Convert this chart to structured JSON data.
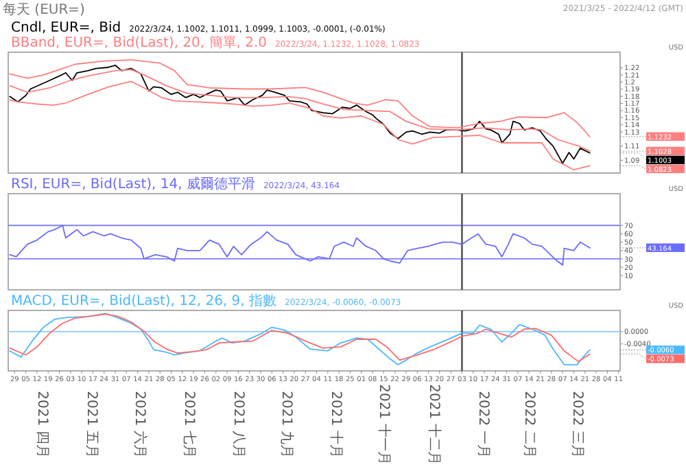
{
  "chart_data": [
    {
      "type": "line",
      "title": "Cndl, EUR=, Bid",
      "subtitle": "2022/3/24, 1.1002, 1.1011, 1.0999, 1.1003, -0.0001, (-0.01%)",
      "ylabel": "USD",
      "xlim": [
        "2021-03-25",
        "2022-04-12"
      ],
      "ylim": [
        1.072,
        1.242
      ],
      "yticks": [
        1.09,
        1.11,
        1.13,
        1.14,
        1.15,
        1.16,
        1.17,
        1.18,
        1.19,
        1.2,
        1.21,
        1.22
      ],
      "tick_labels": "y",
      "ref_lines": [
        {
          "axis": "x",
          "value": "2022-01-03",
          "color": "#555555"
        }
      ],
      "annotations": [
        "BBand, EUR=, Bid(Last), 20, 簡單, 2.0",
        "2022/3/24, 1.1232, 1.1028, 1.0823",
        "每天 (EUR=)",
        "2021/3/25 - 2022/4/12 (GMT)",
        "1.1003",
        "1.1232",
        "1.1028",
        "1.0823"
      ],
      "series": [
        {
          "color": "#000000",
          "x": [
            "2021-03-26",
            "2021-03-31",
            "2021-04-05",
            "2021-04-08",
            "2021-04-14",
            "2021-04-20",
            "2021-04-26",
            "2021-04-30",
            "2021-05-04",
            "2021-05-07",
            "2021-05-14",
            "2021-05-19",
            "2021-05-26",
            "2021-05-31",
            "2021-06-04",
            "2021-06-10",
            "2021-06-16",
            "2021-06-21",
            "2021-06-24",
            "2021-06-29",
            "2021-07-05",
            "2021-07-09",
            "2021-07-14",
            "2021-07-19",
            "2021-07-23",
            "2021-07-27",
            "2021-08-02",
            "2021-08-05",
            "2021-08-09",
            "2021-08-16",
            "2021-08-20",
            "2021-08-25",
            "2021-08-31",
            "2021-09-03",
            "2021-09-08",
            "2021-09-14",
            "2021-09-17",
            "2021-09-24",
            "2021-09-28",
            "2021-10-01",
            "2021-10-08",
            "2021-10-14",
            "2021-10-20",
            "2021-10-25",
            "2021-10-29",
            "2021-11-04",
            "2021-11-08",
            "2021-11-10",
            "2021-11-15",
            "2021-11-19",
            "2021-11-24",
            "2021-11-29",
            "2021-12-03",
            "2021-12-09",
            "2021-12-14",
            "2021-12-20",
            "2021-12-24",
            "2021-12-31",
            "2022-01-05",
            "2022-01-10",
            "2022-01-14",
            "2022-01-18",
            "2022-01-21",
            "2022-01-26",
            "2022-01-28",
            "2022-02-02",
            "2022-02-04",
            "2022-02-08",
            "2022-02-11",
            "2022-02-16",
            "2022-02-21",
            "2022-02-25",
            "2022-03-01",
            "2022-03-07",
            "2022-03-11",
            "2022-03-14",
            "2022-03-18",
            "2022-03-22",
            "2022-03-24"
          ],
          "values": [
            1.1796,
            1.1721,
            1.1812,
            1.1903,
            1.1964,
            1.2024,
            1.2085,
            1.213,
            1.2024,
            1.213,
            1.216,
            1.2191,
            1.2205,
            1.2236,
            1.216,
            1.2191,
            1.2115,
            1.1873,
            1.1933,
            1.1918,
            1.1827,
            1.1857,
            1.1782,
            1.1827,
            1.1782,
            1.1827,
            1.1887,
            1.1873,
            1.1736,
            1.1782,
            1.1675,
            1.1751,
            1.1812,
            1.1887,
            1.1857,
            1.1812,
            1.1736,
            1.1721,
            1.1691,
            1.16,
            1.1569,
            1.1555,
            1.1645,
            1.163,
            1.1675,
            1.1585,
            1.1539,
            1.1494,
            1.1403,
            1.1282,
            1.1205,
            1.1296,
            1.1312,
            1.1266,
            1.1296,
            1.1282,
            1.1327,
            1.1327,
            1.1312,
            1.1342,
            1.1448,
            1.1342,
            1.1327,
            1.1266,
            1.1145,
            1.1266,
            1.1448,
            1.1418,
            1.1327,
            1.1357,
            1.1312,
            1.1191,
            1.11,
            1.0857,
            1.1009,
            1.0918,
            1.1069,
            1.1024,
            1.1003
          ]
        },
        {
          "color": "#ff7f7f",
          "x": [
            "2021-03-26",
            "2021-04-06",
            "2021-04-16",
            "2021-04-26",
            "2021-05-06",
            "2021-05-24",
            "2021-06-10",
            "2021-06-28",
            "2021-07-07",
            "2021-07-15",
            "2021-07-29",
            "2021-08-20",
            "2021-09-06",
            "2021-09-27",
            "2021-10-08",
            "2021-10-27",
            "2021-11-05",
            "2021-11-16",
            "2021-11-24",
            "2021-12-03",
            "2021-12-14",
            "2021-12-31",
            "2022-01-14",
            "2022-01-27",
            "2022-02-07",
            "2022-02-25",
            "2022-03-08",
            "2022-03-16",
            "2022-03-24"
          ],
          "values": [
            1.2115,
            1.2055,
            1.21,
            1.2175,
            1.2251,
            1.2296,
            1.2312,
            1.2266,
            1.216,
            1.1964,
            1.1918,
            1.1903,
            1.1903,
            1.1924,
            1.1857,
            1.1705,
            1.1675,
            1.1751,
            1.1736,
            1.1524,
            1.1373,
            1.1357,
            1.1418,
            1.1448,
            1.1509,
            1.15,
            1.1569,
            1.1433,
            1.1232
          ]
        },
        {
          "color": "#ff7f7f",
          "x": [
            "2021-03-26",
            "2021-04-06",
            "2021-04-20",
            "2021-05-03",
            "2021-05-14",
            "2021-05-31",
            "2021-06-10",
            "2021-06-18",
            "2021-07-02",
            "2021-07-15",
            "2021-07-29",
            "2021-08-13",
            "2021-08-31",
            "2021-09-16",
            "2021-09-27",
            "2021-10-08",
            "2021-10-21",
            "2021-11-05",
            "2021-11-19",
            "2021-11-29",
            "2021-12-13",
            "2021-12-31",
            "2022-01-17",
            "2022-02-02",
            "2022-02-15",
            "2022-02-22",
            "2022-03-04",
            "2022-03-17",
            "2022-03-24"
          ],
          "values": [
            1.1948,
            1.1857,
            1.1918,
            1.2024,
            1.2085,
            1.216,
            1.2175,
            1.21,
            1.1948,
            1.1842,
            1.1812,
            1.1782,
            1.1782,
            1.1796,
            1.1766,
            1.1691,
            1.1615,
            1.16,
            1.1585,
            1.1448,
            1.1342,
            1.1327,
            1.1357,
            1.1327,
            1.1342,
            1.1327,
            1.1191,
            1.11,
            1.1028
          ]
        },
        {
          "color": "#ff7f7f",
          "x": [
            "2021-03-26",
            "2021-03-31",
            "2021-04-12",
            "2021-04-22",
            "2021-04-30",
            "2021-05-14",
            "2021-05-27",
            "2021-06-10",
            "2021-06-18",
            "2021-06-29",
            "2021-07-07",
            "2021-07-21",
            "2021-08-04",
            "2021-08-13",
            "2021-08-25",
            "2021-09-06",
            "2021-09-17",
            "2021-09-30",
            "2021-10-08",
            "2021-10-19",
            "2021-11-01",
            "2021-11-15",
            "2021-11-24",
            "2021-12-03",
            "2021-12-16",
            "2021-12-31",
            "2022-01-14",
            "2022-01-28",
            "2022-02-15",
            "2022-02-22",
            "2022-03-01",
            "2022-03-14",
            "2022-03-24"
          ],
          "values": [
            1.1751,
            1.1721,
            1.1691,
            1.1675,
            1.1705,
            1.1827,
            1.1933,
            1.2009,
            1.1918,
            1.1782,
            1.1736,
            1.1721,
            1.1705,
            1.1691,
            1.166,
            1.1675,
            1.1705,
            1.163,
            1.1524,
            1.1494,
            1.1524,
            1.1403,
            1.1191,
            1.113,
            1.1221,
            1.1236,
            1.1251,
            1.1145,
            1.1145,
            1.1145,
            1.0918,
            1.0766,
            1.0823
          ]
        }
      ]
    },
    {
      "type": "line",
      "title": "RSI, EUR=, Bid(Last), 14, 威爾德平滑",
      "subtitle": "2022/3/24, 43.164",
      "ylabel": "USD",
      "xlim": [
        "2021-03-25",
        "2022-04-12"
      ],
      "ylim": [
        -7,
        108
      ],
      "yticks": [
        10,
        20,
        30,
        40,
        50,
        60,
        70
      ],
      "tick_labels": "y",
      "ref_lines": [
        {
          "axis": "y",
          "value": 70,
          "color": "#7f7fff"
        },
        {
          "axis": "y",
          "value": 30,
          "color": "#7f7fff"
        },
        {
          "axis": "x",
          "value": "2022-01-03",
          "color": "#555555"
        }
      ],
      "annotations": [
        "43.164"
      ],
      "series": [
        {
          "color": "#6b6bff",
          "x": [
            "2021-03-26",
            "2021-03-30",
            "2021-04-06",
            "2021-04-12",
            "2021-04-19",
            "2021-04-23",
            "2021-04-28",
            "2021-04-30",
            "2021-05-07",
            "2021-05-11",
            "2021-05-17",
            "2021-05-24",
            "2021-05-28",
            "2021-06-04",
            "2021-06-10",
            "2021-06-16",
            "2021-06-18",
            "2021-06-25",
            "2021-07-02",
            "2021-07-07",
            "2021-07-09",
            "2021-07-15",
            "2021-07-23",
            "2021-07-29",
            "2021-08-04",
            "2021-08-09",
            "2021-08-13",
            "2021-08-18",
            "2021-08-24",
            "2021-08-30",
            "2021-09-03",
            "2021-09-09",
            "2021-09-16",
            "2021-09-21",
            "2021-09-30",
            "2021-10-05",
            "2021-10-12",
            "2021-10-15",
            "2021-10-21",
            "2021-10-27",
            "2021-10-29",
            "2021-11-04",
            "2021-11-10",
            "2021-11-15",
            "2021-11-19",
            "2021-11-25",
            "2021-11-30",
            "2021-12-06",
            "2021-12-13",
            "2021-12-17",
            "2021-12-22",
            "2021-12-28",
            "2022-01-03",
            "2022-01-07",
            "2022-01-13",
            "2022-01-18",
            "2022-01-24",
            "2022-01-28",
            "2022-02-01",
            "2022-02-04",
            "2022-02-11",
            "2022-02-16",
            "2022-02-22",
            "2022-03-02",
            "2022-03-07",
            "2022-03-08",
            "2022-03-14",
            "2022-03-18",
            "2022-03-24"
          ],
          "values": [
            35,
            32.5,
            47.5,
            52.5,
            62.5,
            65,
            70,
            55,
            65,
            57.5,
            62.5,
            57.5,
            60,
            55,
            52.5,
            42.5,
            30,
            35,
            32.5,
            27.5,
            42.5,
            40,
            40,
            52.5,
            47.5,
            32.5,
            45,
            35,
            47.5,
            55,
            62.5,
            52.5,
            47.5,
            35,
            27.5,
            32.5,
            30,
            45,
            50,
            45,
            55,
            45,
            40,
            30,
            27.5,
            25,
            40,
            42.5,
            45,
            47.5,
            50,
            50,
            47.5,
            52.5,
            60,
            47.5,
            45,
            32.5,
            47.5,
            60,
            55,
            47.5,
            45,
            30,
            22.5,
            42.5,
            40,
            50,
            43.164
          ]
        }
      ]
    },
    {
      "type": "line",
      "title": "MACD, EUR=, Bid(Last), 12, 26, 9, 指數",
      "subtitle": "2022/3/24, -0.0060, -0.0073",
      "ylabel": "USD",
      "xlim": [
        "2021-03-25",
        "2022-04-12"
      ],
      "ylim": [
        -0.0128,
        0.0069
      ],
      "yticks": [
        {
          "value": 0,
          "label": "0.0000"
        },
        {
          "value": -0.004,
          "label": "-0.0040"
        }
      ],
      "xticks": [
        {
          "value": "2021-03-29",
          "label": "29"
        },
        {
          "value": "2021-04-05",
          "label": "05"
        },
        {
          "value": "2021-04-12",
          "label": "12"
        },
        {
          "value": "2021-04-19",
          "label": "19"
        },
        {
          "value": "2021-04-26",
          "label": "26"
        },
        {
          "value": "2021-05-03",
          "label": "03"
        },
        {
          "value": "2021-05-10",
          "label": "10"
        },
        {
          "value": "2021-05-17",
          "label": "17"
        },
        {
          "value": "2021-05-24",
          "label": "24"
        },
        {
          "value": "2021-05-31",
          "label": "31"
        },
        {
          "value": "2021-06-07",
          "label": "07"
        },
        {
          "value": "2021-06-14",
          "label": "14"
        },
        {
          "value": "2021-06-21",
          "label": "21"
        },
        {
          "value": "2021-06-28",
          "label": "28"
        },
        {
          "value": "2021-07-05",
          "label": "05"
        },
        {
          "value": "2021-07-12",
          "label": "12"
        },
        {
          "value": "2021-07-19",
          "label": "19"
        },
        {
          "value": "2021-07-26",
          "label": "26"
        },
        {
          "value": "2021-08-02",
          "label": "02"
        },
        {
          "value": "2021-08-09",
          "label": "09"
        },
        {
          "value": "2021-08-16",
          "label": "16"
        },
        {
          "value": "2021-08-23",
          "label": "23"
        },
        {
          "value": "2021-08-30",
          "label": "30"
        },
        {
          "value": "2021-09-06",
          "label": "06"
        },
        {
          "value": "2021-09-13",
          "label": "13"
        },
        {
          "value": "2021-09-20",
          "label": "20"
        },
        {
          "value": "2021-09-27",
          "label": "27"
        },
        {
          "value": "2021-10-04",
          "label": "04"
        },
        {
          "value": "2021-10-11",
          "label": "11"
        },
        {
          "value": "2021-10-18",
          "label": "18"
        },
        {
          "value": "2021-10-25",
          "label": "25"
        },
        {
          "value": "2021-11-01",
          "label": "01"
        },
        {
          "value": "2021-11-08",
          "label": "08"
        },
        {
          "value": "2021-11-15",
          "label": "15"
        },
        {
          "value": "2021-11-22",
          "label": "22"
        },
        {
          "value": "2021-11-29",
          "label": "29"
        },
        {
          "value": "2021-12-06",
          "label": "06"
        },
        {
          "value": "2021-12-13",
          "label": "13"
        },
        {
          "value": "2021-12-20",
          "label": "20"
        },
        {
          "value": "2021-12-27",
          "label": "27"
        },
        {
          "value": "2022-01-03",
          "label": "03"
        },
        {
          "value": "2022-01-10",
          "label": "10"
        },
        {
          "value": "2022-01-17",
          "label": "17"
        },
        {
          "value": "2022-01-24",
          "label": "24"
        },
        {
          "value": "2022-01-31",
          "label": "31"
        },
        {
          "value": "2022-02-07",
          "label": "07"
        },
        {
          "value": "2022-02-14",
          "label": "14"
        },
        {
          "value": "2022-02-21",
          "label": "21"
        },
        {
          "value": "2022-02-28",
          "label": "28"
        },
        {
          "value": "2022-03-07",
          "label": "07"
        },
        {
          "value": "2022-03-14",
          "label": "14"
        },
        {
          "value": "2022-03-21",
          "label": "21"
        },
        {
          "value": "2022-03-28",
          "label": "28"
        },
        {
          "value": "2022-04-04",
          "label": "04"
        },
        {
          "value": "2022-04-11",
          "label": "11"
        }
      ],
      "x2lim": [
        "2021-03-25",
        "2022-04-12"
      ],
      "x2ticks": [
        {
          "value": "2021-04-15",
          "label": "2021 四月"
        },
        {
          "value": "2021-05-16",
          "label": "2021 五月"
        },
        {
          "value": "2021-06-15",
          "label": "2021 六月"
        },
        {
          "value": "2021-07-16",
          "label": "2021 七月"
        },
        {
          "value": "2021-08-16",
          "label": "2021 八月"
        },
        {
          "value": "2021-09-15",
          "label": "2021 九月"
        },
        {
          "value": "2021-10-16",
          "label": "2021 十月"
        },
        {
          "value": "2021-11-15",
          "label": "2021 十一月"
        },
        {
          "value": "2021-12-16",
          "label": "2021 十二月"
        },
        {
          "value": "2022-01-16",
          "label": "2022 一月"
        },
        {
          "value": "2022-02-14",
          "label": "2022 二月"
        },
        {
          "value": "2022-03-16",
          "label": "2022 三月"
        }
      ],
      "ref_lines": [
        {
          "axis": "y",
          "value": 0,
          "color": "#8cc8ff"
        },
        {
          "axis": "x",
          "value": "2022-01-03",
          "color": "#555555"
        }
      ],
      "annotations": [
        "-0.0060",
        "-0.0073"
      ],
      "series": [
        {
          "color": "#4db8ff",
          "x": [
            "2021-03-26",
            "2021-04-02",
            "2021-04-09",
            "2021-04-16",
            "2021-04-23",
            "2021-04-30",
            "2021-05-14",
            "2021-05-25",
            "2021-06-02",
            "2021-06-10",
            "2021-06-16",
            "2021-06-21",
            "2021-06-24",
            "2021-07-02",
            "2021-07-07",
            "2021-07-13",
            "2021-07-23",
            "2021-08-02",
            "2021-08-06",
            "2021-08-12",
            "2021-08-20",
            "2021-08-31",
            "2021-09-06",
            "2021-09-14",
            "2021-09-21",
            "2021-09-30",
            "2021-10-11",
            "2021-10-19",
            "2021-10-29",
            "2021-11-05",
            "2021-11-12",
            "2021-11-19",
            "2021-11-24",
            "2021-11-29",
            "2021-12-06",
            "2021-12-14",
            "2021-12-24",
            "2022-01-03",
            "2022-01-10",
            "2022-01-14",
            "2022-01-21",
            "2022-01-28",
            "2022-02-03",
            "2022-02-08",
            "2022-02-16",
            "2022-02-24",
            "2022-03-01",
            "2022-03-08",
            "2022-03-16",
            "2022-03-21",
            "2022-03-24"
          ],
          "values": [
            -0.0063,
            -0.0083,
            -0.0031,
            0.0014,
            0.004,
            0.0046,
            0.0049,
            0.0059,
            0.0044,
            0.0027,
            0.0008,
            -0.0031,
            -0.0059,
            -0.0067,
            -0.0076,
            -0.007,
            -0.0062,
            -0.0031,
            -0.0021,
            -0.0037,
            -0.0031,
            -0.0005,
            0.0014,
            0.0005,
            -0.0018,
            -0.0057,
            -0.0063,
            -0.0037,
            -0.0021,
            -0.0025,
            -0.0057,
            -0.0089,
            -0.0108,
            -0.0093,
            -0.007,
            -0.005,
            -0.0028,
            -0.0005,
            -0.0005,
            0.0021,
            0.0008,
            -0.0034,
            -0.0005,
            0.0023,
            0.0008,
            -0.0012,
            -0.0057,
            -0.0108,
            -0.0108,
            -0.0076,
            -0.006
          ]
        },
        {
          "color": "#ff6b6b",
          "x": [
            "2021-03-26",
            "2021-04-05",
            "2021-04-12",
            "2021-04-20",
            "2021-04-28",
            "2021-05-06",
            "2021-05-14",
            "2021-05-25",
            "2021-06-02",
            "2021-06-10",
            "2021-06-18",
            "2021-06-24",
            "2021-07-02",
            "2021-07-09",
            "2021-07-19",
            "2021-07-27",
            "2021-08-04",
            "2021-08-13",
            "2021-08-25",
            "2021-09-06",
            "2021-09-16",
            "2021-09-27",
            "2021-10-08",
            "2021-10-19",
            "2021-10-29",
            "2021-11-10",
            "2021-11-17",
            "2021-11-25",
            "2021-12-06",
            "2021-12-17",
            "2021-12-28",
            "2022-01-03",
            "2022-01-13",
            "2022-01-18",
            "2022-01-26",
            "2022-02-03",
            "2022-02-11",
            "2022-02-18",
            "2022-02-28",
            "2022-03-08",
            "2022-03-17",
            "2022-03-24"
          ],
          "values": [
            -0.0054,
            -0.0076,
            -0.005,
            -0.0005,
            0.0027,
            0.0044,
            0.0049,
            0.0057,
            0.0049,
            0.0031,
            0.0001,
            -0.0031,
            -0.0057,
            -0.007,
            -0.0065,
            -0.0059,
            -0.0037,
            -0.0034,
            -0.0031,
            0.0004,
            -0.0005,
            -0.0031,
            -0.0054,
            -0.005,
            -0.0025,
            -0.0025,
            -0.005,
            -0.0093,
            -0.0076,
            -0.0057,
            -0.0031,
            -0.0015,
            -0.0005,
            0.0008,
            -0.0005,
            -0.0018,
            0.0008,
            0.001,
            -0.0012,
            -0.0063,
            -0.0098,
            -0.0073
          ]
        }
      ]
    }
  ]
}
